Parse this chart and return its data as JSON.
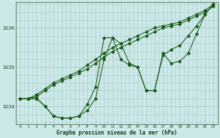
{
  "title": "Graphe pression niveau de la mer (hPa)",
  "background_color": "#cce8e8",
  "grid_color": "#aacccc",
  "line_color": "#1a5c1a",
  "xlim": [
    -0.5,
    23.5
  ],
  "ylim": [
    1033.55,
    1036.65
  ],
  "xticks": [
    0,
    1,
    2,
    3,
    4,
    5,
    6,
    7,
    8,
    9,
    10,
    11,
    12,
    13,
    14,
    15,
    16,
    17,
    18,
    19,
    20,
    21,
    22,
    23
  ],
  "yticks": [
    1034,
    1035,
    1036
  ],
  "series": [
    [
      1034.2,
      1034.2,
      1034.25,
      1034.4,
      1034.55,
      1034.65,
      1034.75,
      1034.85,
      1034.95,
      1035.1,
      1035.25,
      1035.4,
      1035.5,
      1035.6,
      1035.7,
      1035.8,
      1035.9,
      1036.0,
      1036.05,
      1036.1,
      1036.2,
      1036.3,
      1036.4,
      1036.55
    ],
    [
      1034.2,
      1034.2,
      1034.3,
      1034.45,
      1034.6,
      1034.7,
      1034.8,
      1034.9,
      1035.05,
      1035.2,
      1035.35,
      1035.5,
      1035.6,
      1035.7,
      1035.8,
      1035.9,
      1036.0,
      1036.05,
      1036.1,
      1036.15,
      1036.25,
      1036.35,
      1036.45,
      1036.6
    ],
    [
      1034.2,
      1034.2,
      1034.2,
      1034.0,
      1033.75,
      1033.7,
      1033.7,
      1033.75,
      1033.9,
      1034.2,
      1035.2,
      1035.75,
      1035.6,
      1035.1,
      1035.0,
      1034.4,
      1034.4,
      1035.3,
      1035.45,
      1035.55,
      1035.8,
      1036.05,
      1036.35,
      1036.6
    ],
    [
      1034.2,
      1034.2,
      1034.2,
      1034.0,
      1033.75,
      1033.7,
      1033.7,
      1033.75,
      1034.05,
      1034.5,
      1035.75,
      1035.75,
      1035.2,
      1035.05,
      1035.0,
      1034.4,
      1034.4,
      1035.35,
      1035.1,
      1035.15,
      1035.35,
      1035.85,
      1036.35,
      1036.6
    ]
  ]
}
